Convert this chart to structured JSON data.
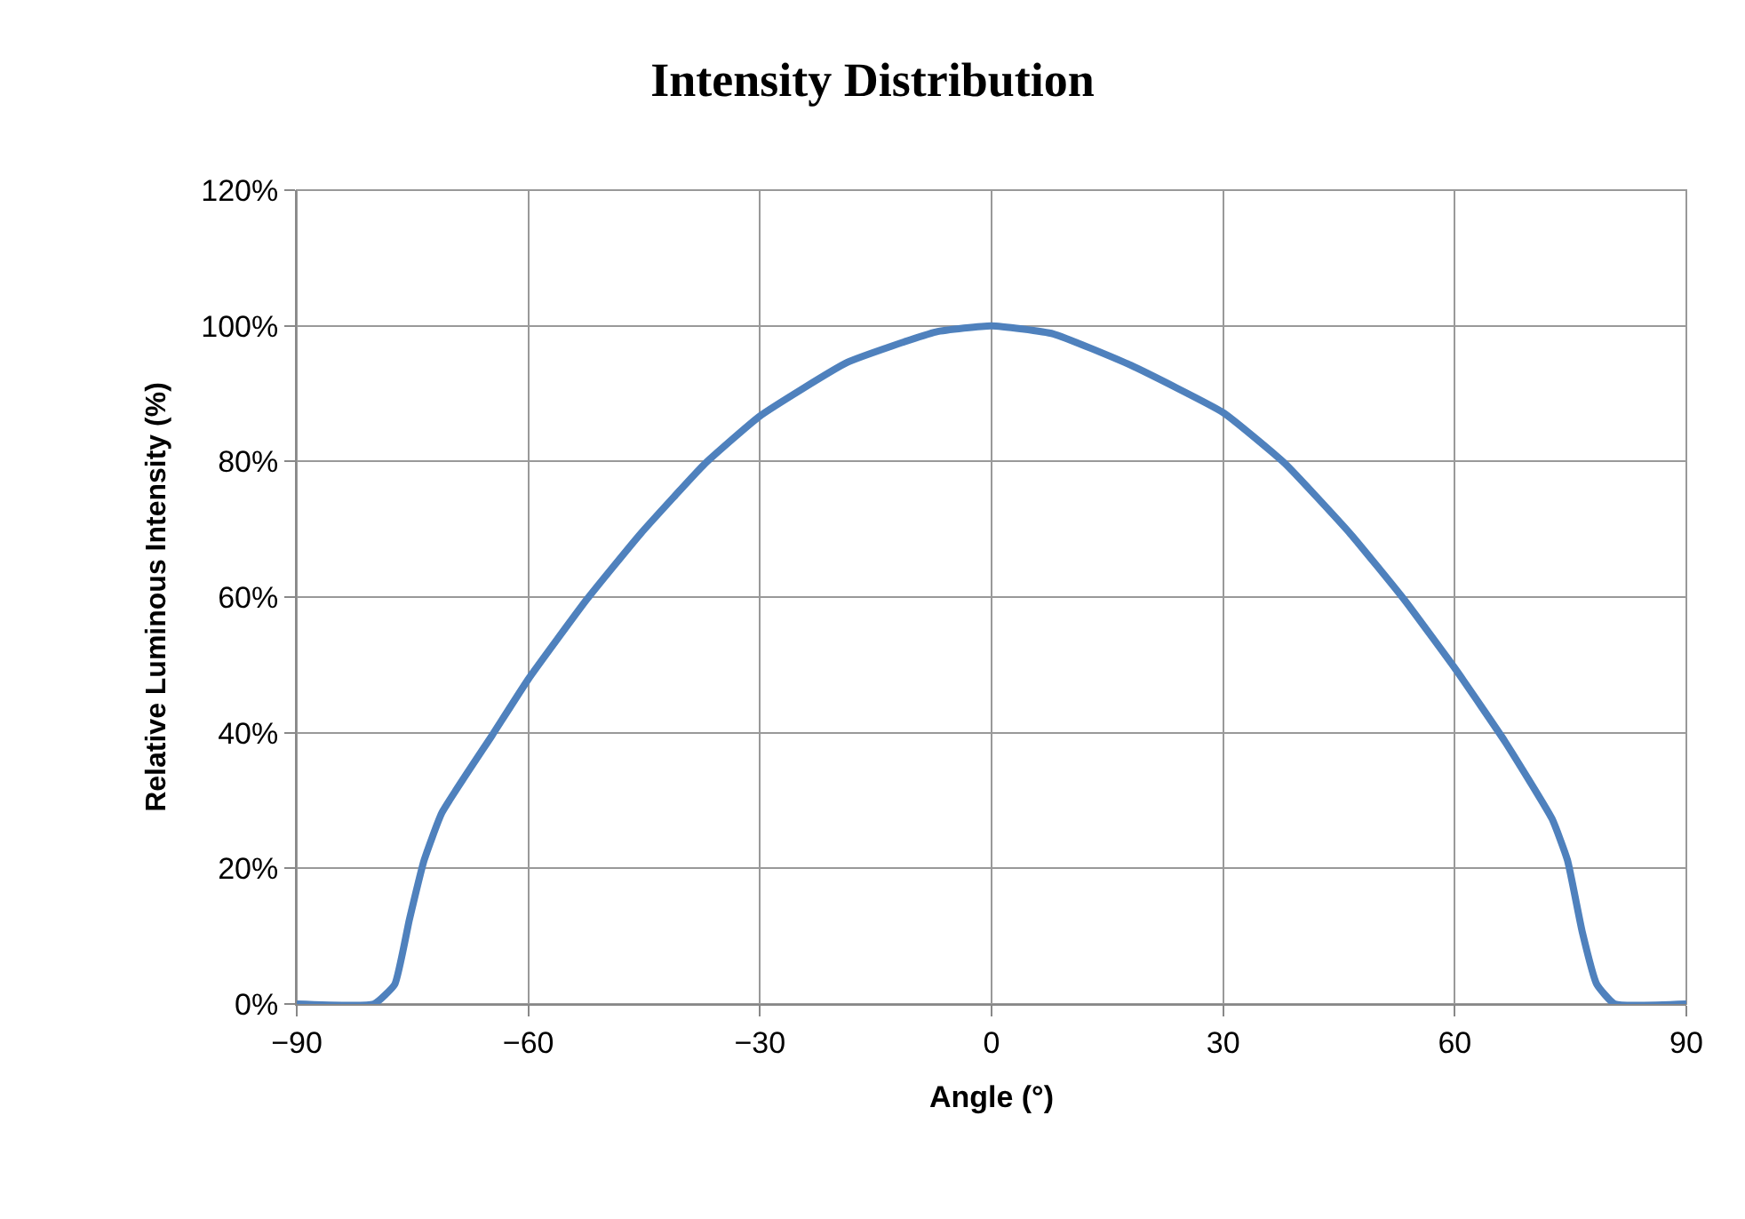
{
  "chart_data": {
    "type": "line",
    "title": "Intensity Distribution",
    "xlabel": "Angle (°)",
    "ylabel": "Relative Luminous Intensity (%)",
    "x": [
      -90,
      -80,
      -77.3,
      -75.4,
      -73.5,
      -71.2,
      -64.7,
      -60,
      -52.4,
      -45.5,
      -37.1,
      -30,
      -18.7,
      -7.2,
      0,
      8,
      18,
      30,
      38,
      46.5,
      53.4,
      60.2,
      66.5,
      72.6,
      74.6,
      76.5,
      78.4,
      80.7,
      90
    ],
    "series": [
      {
        "color": "#4f81bd",
        "values": [
          0,
          0,
          2.9,
          12.5,
          21.2,
          28.2,
          39.6,
          47.9,
          59.7,
          69.3,
          79.7,
          86.7,
          94.6,
          99.1,
          100,
          98.8,
          94.2,
          87.2,
          79.7,
          69.3,
          59.7,
          49.2,
          38.7,
          27.3,
          21.2,
          10.7,
          2.9,
          0,
          0
        ]
      }
    ],
    "xlim": [
      -90,
      90
    ],
    "xticks": [
      {
        "value": -90,
        "label": "−90"
      },
      {
        "value": -60,
        "label": "−60"
      },
      {
        "value": -30,
        "label": "−30"
      },
      0,
      30,
      60,
      90
    ],
    "ylim": [
      0,
      120
    ],
    "yticks": [
      {
        "value": 0,
        "label": "0%"
      },
      {
        "value": 20,
        "label": "20%"
      },
      {
        "value": 40,
        "label": "40%"
      },
      {
        "value": 60,
        "label": "60%"
      },
      {
        "value": 80,
        "label": "80%"
      },
      {
        "value": 100,
        "label": "100%"
      },
      {
        "value": 120,
        "label": "120%"
      }
    ],
    "grid": true,
    "marker": "none",
    "line_style": "solid"
  }
}
